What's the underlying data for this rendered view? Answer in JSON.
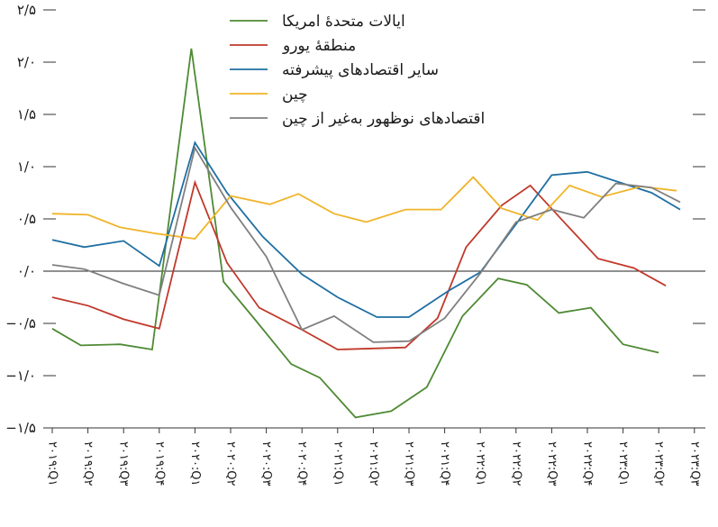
{
  "chart_data": {
    "type": "line",
    "title": "",
    "xlabel": "",
    "ylabel": "",
    "ylim": [
      -1.5,
      2.5
    ],
    "yticks": [
      -1.5,
      -1.0,
      -0.5,
      0.0,
      0.5,
      1.0,
      1.5,
      2.0,
      2.5
    ],
    "ytick_labels": [
      "−۱/۵",
      "−۱/۰",
      "−۰/۵",
      "۰/۰",
      "۰/۵",
      "۱/۰",
      "۱/۵",
      "۲/۰",
      "۲/۵"
    ],
    "grid": false,
    "zero_line": true,
    "legend_position": "top-center",
    "x": [
      "۲۰۱۹:Q۱",
      "۲۰۱۹:Q۲",
      "۲۰۱۹:Q۳",
      "۲۰۱۹:Q۴",
      "۲۰۲۰:Q۱",
      "۲۰۲۰:Q۲",
      "۲۰۲۰:Q۳",
      "۲۰۲۰:Q۴",
      "۲۰۲۱:Q۱",
      "۲۰۲۱:Q۲",
      "۲۰۲۱:Q۳",
      "۲۰۲۱:Q۴",
      "۲۰۲۲:Q۱",
      "۲۰۲۲:Q۲",
      "۲۰۲۲:Q۳",
      "۲۰۲۲:Q۴",
      "۲۰۲۳:Q۱",
      "۲۰۲۳:Q۲",
      "۲۰۲۳:Q۳"
    ],
    "x_positions": [
      0,
      1,
      2,
      3,
      4,
      5,
      6,
      7,
      8,
      9,
      10,
      11,
      12,
      13,
      14,
      15,
      16,
      17,
      18
    ],
    "series": [
      {
        "name": "ایالات متحدهٔ امریکا",
        "color": "#4e8a34",
        "points": [
          [
            0.0,
            -0.55
          ],
          [
            0.8,
            -0.71
          ],
          [
            1.9,
            -0.7
          ],
          [
            2.8,
            -0.75
          ],
          [
            3.9,
            2.13
          ],
          [
            4.8,
            -0.1
          ],
          [
            5.7,
            -0.47
          ],
          [
            6.7,
            -0.89
          ],
          [
            7.5,
            -1.02
          ],
          [
            8.5,
            -1.4
          ],
          [
            9.5,
            -1.34
          ],
          [
            10.5,
            -1.11
          ],
          [
            11.5,
            -0.43
          ],
          [
            12.5,
            -0.07
          ],
          [
            13.3,
            -0.13
          ],
          [
            14.2,
            -0.4
          ],
          [
            15.1,
            -0.35
          ],
          [
            16.0,
            -0.7
          ],
          [
            17.0,
            -0.78
          ]
        ]
      },
      {
        "name": "منطقهٔ یورو",
        "color": "#c0392b",
        "points": [
          [
            0.0,
            -0.25
          ],
          [
            1.0,
            -0.33
          ],
          [
            2.0,
            -0.46
          ],
          [
            3.0,
            -0.55
          ],
          [
            4.0,
            0.85
          ],
          [
            4.9,
            0.08
          ],
          [
            5.8,
            -0.35
          ],
          [
            7.0,
            -0.56
          ],
          [
            8.0,
            -0.75
          ],
          [
            9.0,
            -0.74
          ],
          [
            9.9,
            -0.73
          ],
          [
            10.8,
            -0.45
          ],
          [
            11.6,
            0.23
          ],
          [
            12.6,
            0.63
          ],
          [
            13.4,
            0.82
          ],
          [
            14.4,
            0.45
          ],
          [
            15.3,
            0.12
          ],
          [
            16.3,
            0.03
          ],
          [
            17.2,
            -0.14
          ]
        ]
      },
      {
        "name": "سایر اقتصادهای پیشرفته",
        "color": "#1f6fa3",
        "points": [
          [
            0.0,
            0.3
          ],
          [
            0.9,
            0.23
          ],
          [
            2.0,
            0.29
          ],
          [
            3.0,
            0.05
          ],
          [
            4.0,
            1.23
          ],
          [
            4.9,
            0.75
          ],
          [
            5.9,
            0.33
          ],
          [
            7.0,
            -0.03
          ],
          [
            8.0,
            -0.25
          ],
          [
            9.1,
            -0.44
          ],
          [
            10.0,
            -0.44
          ],
          [
            11.1,
            -0.19
          ],
          [
            12.0,
            -0.01
          ],
          [
            13.0,
            0.45
          ],
          [
            14.0,
            0.92
          ],
          [
            15.0,
            0.95
          ],
          [
            15.9,
            0.85
          ],
          [
            16.8,
            0.75
          ],
          [
            17.6,
            0.59
          ]
        ]
      },
      {
        "name": "چین",
        "color": "#f0b429",
        "points": [
          [
            0.0,
            0.55
          ],
          [
            1.0,
            0.54
          ],
          [
            1.9,
            0.42
          ],
          [
            2.9,
            0.36
          ],
          [
            4.0,
            0.31
          ],
          [
            5.0,
            0.72
          ],
          [
            6.1,
            0.64
          ],
          [
            6.9,
            0.74
          ],
          [
            7.9,
            0.55
          ],
          [
            8.8,
            0.47
          ],
          [
            9.9,
            0.59
          ],
          [
            10.9,
            0.59
          ],
          [
            11.8,
            0.9
          ],
          [
            12.6,
            0.6
          ],
          [
            13.6,
            0.49
          ],
          [
            14.5,
            0.82
          ],
          [
            15.4,
            0.71
          ],
          [
            16.5,
            0.81
          ],
          [
            17.5,
            0.77
          ]
        ]
      },
      {
        "name": "اقتصادهای نوظهور به‌غیر از چین",
        "color": "#808080",
        "points": [
          [
            0.0,
            0.06
          ],
          [
            0.9,
            0.02
          ],
          [
            2.0,
            -0.12
          ],
          [
            3.0,
            -0.23
          ],
          [
            4.0,
            1.18
          ],
          [
            5.0,
            0.61
          ],
          [
            6.0,
            0.14
          ],
          [
            7.0,
            -0.56
          ],
          [
            7.9,
            -0.43
          ],
          [
            9.0,
            -0.68
          ],
          [
            10.0,
            -0.67
          ],
          [
            11.0,
            -0.45
          ],
          [
            12.0,
            -0.02
          ],
          [
            13.0,
            0.47
          ],
          [
            14.0,
            0.59
          ],
          [
            14.9,
            0.51
          ],
          [
            15.8,
            0.84
          ],
          [
            16.8,
            0.8
          ],
          [
            17.6,
            0.66
          ]
        ]
      }
    ]
  }
}
